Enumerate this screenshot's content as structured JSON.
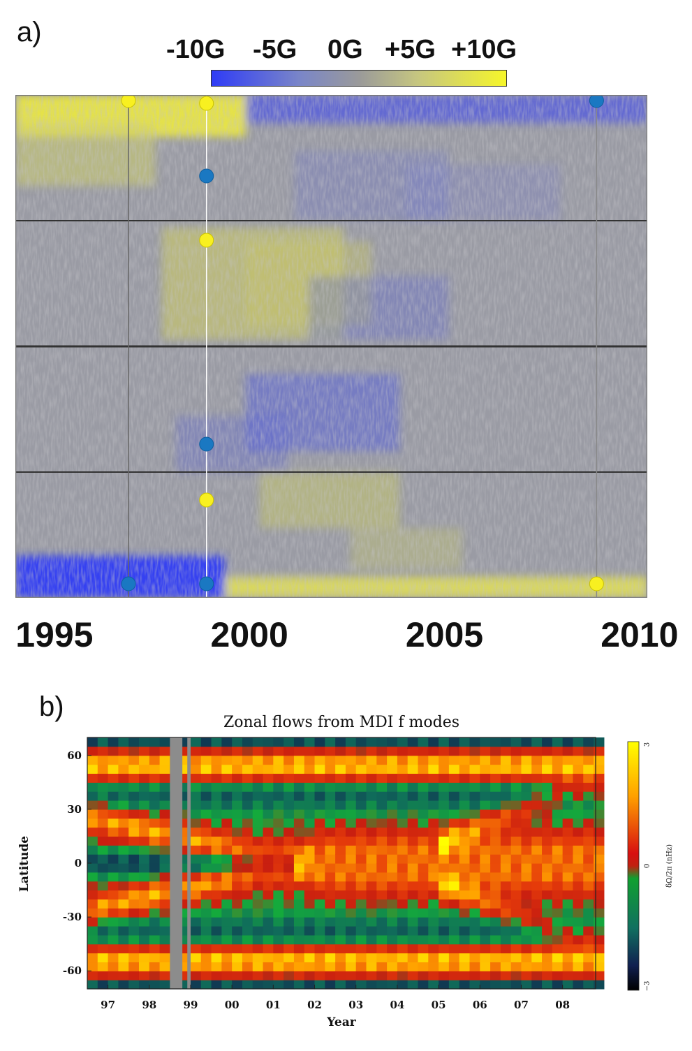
{
  "panel_a": {
    "label": "a)",
    "colorbar": {
      "ticks": [
        "-10G",
        "-5G",
        "0G",
        "+5G",
        "+10G"
      ],
      "colors": [
        "#2f3cf6",
        "#9a9a9a",
        "#f6f62a"
      ]
    },
    "x_tick_labels": [
      "1995",
      "2000",
      "2005",
      "2010"
    ]
  },
  "panel_b": {
    "label": "b)",
    "colorbar": {
      "label": "δΩ/2π (nHz)",
      "ticks": [
        "3",
        "0",
        "−3"
      ]
    }
  },
  "chart_data": [
    {
      "type": "heatmap",
      "title": "",
      "xlabel": "",
      "ylabel": "",
      "x_range": [
        1994,
        2010.2
      ],
      "x_ticks": [
        1995,
        2000,
        2005,
        2010
      ],
      "y_range": [
        -90,
        90
      ],
      "y_gridlines": [
        -45,
        0,
        45
      ],
      "colorbar": {
        "ticks": [
          "-10G",
          "-5G",
          "0G",
          "+5G",
          "+10G"
        ],
        "range": [
          -10,
          10
        ],
        "unit": "G"
      },
      "vertical_markers": [
        {
          "x": 1996.9,
          "color": "#666666"
        },
        {
          "x": 1998.9,
          "color": "#ffffff"
        },
        {
          "x": 2008.9,
          "color": "#888888"
        }
      ],
      "points": [
        {
          "x": 1996.9,
          "y": 88,
          "color": "yellow"
        },
        {
          "x": 1998.9,
          "y": 87,
          "color": "yellow"
        },
        {
          "x": 2008.9,
          "y": 88,
          "color": "blue"
        },
        {
          "x": 1998.9,
          "y": 61,
          "color": "blue"
        },
        {
          "x": 1998.9,
          "y": 38,
          "color": "yellow"
        },
        {
          "x": 1998.9,
          "y": -35,
          "color": "blue"
        },
        {
          "x": 1998.9,
          "y": -55,
          "color": "yellow"
        },
        {
          "x": 1996.9,
          "y": -85,
          "color": "blue"
        },
        {
          "x": 1998.9,
          "y": -85,
          "color": "blue"
        },
        {
          "x": 2008.9,
          "y": -85,
          "color": "yellow"
        }
      ]
    },
    {
      "type": "heatmap",
      "title": "Zonal flows from MDI f modes",
      "xlabel": "Year",
      "ylabel": "Latitude",
      "x_range": [
        1996.5,
        2008.8
      ],
      "x_ticks": [
        1997,
        1998,
        1999,
        2000,
        2001,
        2002,
        2003,
        2004,
        2005,
        2006,
        2007,
        2008
      ],
      "x_tick_labels": [
        "97",
        "98",
        "99",
        "00",
        "01",
        "02",
        "03",
        "04",
        "05",
        "06",
        "07",
        "08"
      ],
      "y_range": [
        -70,
        70
      ],
      "y_ticks": [
        60,
        30,
        0,
        -30,
        -60
      ],
      "colorbar": {
        "label": "δΩ/2π (nHz)",
        "range": [
          -3,
          3
        ],
        "ticks": [
          3,
          0,
          -3
        ]
      },
      "data_gaps": [
        [
          1998.5,
          1998.8
        ],
        [
          1998.92,
          1999.0
        ]
      ]
    }
  ]
}
